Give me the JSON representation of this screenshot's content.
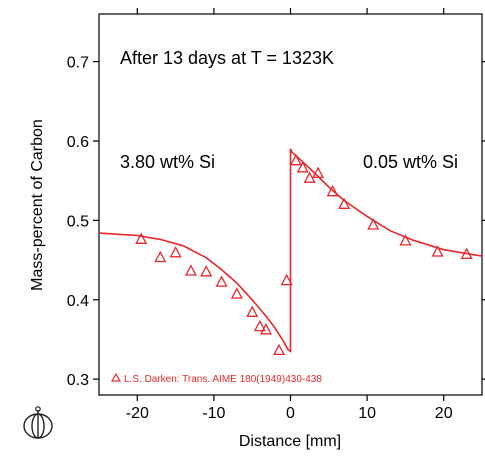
{
  "chart_data": {
    "type": "scatter",
    "title": "",
    "xlabel": "Distance  [mm]",
    "ylabel": "Mass-percent of Carbon",
    "xlim": [
      -25,
      25
    ],
    "ylim": [
      0.28,
      0.76
    ],
    "x_ticks": [
      -20,
      -10,
      0,
      10,
      20
    ],
    "x_tick_labels": [
      "-20",
      "-10",
      "0",
      "10",
      "20"
    ],
    "y_ticks": [
      0.3,
      0.4,
      0.5,
      0.6,
      0.7
    ],
    "y_tick_labels": [
      "0.3",
      "0.4",
      "0.5",
      "0.6",
      "0.7"
    ],
    "grid": false,
    "colors": {
      "series": "#e8282b",
      "axis": "#000000"
    },
    "annotations": {
      "condition": "After 13 days at T = 1323K",
      "left_alloy": "3.80 wt% Si",
      "right_alloy": "0.05 wt% Si"
    },
    "legend": {
      "label": "L.S. Darken: Trans. AIME 180(1949)430-438",
      "placement": "bottom-left"
    },
    "series": [
      {
        "name": "L.S. Darken: Trans. AIME 180(1949)430-438",
        "kind": "points",
        "marker": "triangle",
        "points": [
          [
            -19.5,
            0.476
          ],
          [
            -17,
            0.453
          ],
          [
            -15,
            0.459
          ],
          [
            -13,
            0.436
          ],
          [
            -11,
            0.435
          ],
          [
            -9,
            0.422
          ],
          [
            -7,
            0.407
          ],
          [
            -5,
            0.384
          ],
          [
            -4,
            0.366
          ],
          [
            -3.2,
            0.362
          ],
          [
            -1.5,
            0.336
          ],
          [
            -0.5,
            0.424
          ],
          [
            0.7,
            0.575
          ],
          [
            1.6,
            0.566
          ],
          [
            2.5,
            0.553
          ],
          [
            3.6,
            0.559
          ],
          [
            5.5,
            0.536
          ],
          [
            7,
            0.52
          ],
          [
            10.8,
            0.494
          ],
          [
            15,
            0.474
          ],
          [
            19.2,
            0.46
          ],
          [
            23,
            0.457
          ]
        ]
      },
      {
        "name": "",
        "kind": "curve",
        "points": [
          [
            -25,
            0.484
          ],
          [
            -20,
            0.481
          ],
          [
            -17,
            0.476
          ],
          [
            -14,
            0.468
          ],
          [
            -11,
            0.453
          ],
          [
            -9,
            0.438
          ],
          [
            -7,
            0.421
          ],
          [
            -5,
            0.4
          ],
          [
            -3,
            0.377
          ],
          [
            -2,
            0.364
          ],
          [
            -1,
            0.349
          ],
          [
            -0.3,
            0.337
          ],
          [
            0,
            0.335
          ],
          [
            0,
            0.59
          ],
          [
            0.2,
            0.586
          ],
          [
            1,
            0.579
          ],
          [
            2,
            0.57
          ],
          [
            3,
            0.561
          ],
          [
            5,
            0.542
          ],
          [
            7,
            0.525
          ],
          [
            10,
            0.505
          ],
          [
            13,
            0.487
          ],
          [
            16,
            0.475
          ],
          [
            20,
            0.463
          ],
          [
            25,
            0.455
          ]
        ]
      }
    ]
  },
  "branding": {
    "logo_icon": "thermo-calc-logo-icon"
  }
}
